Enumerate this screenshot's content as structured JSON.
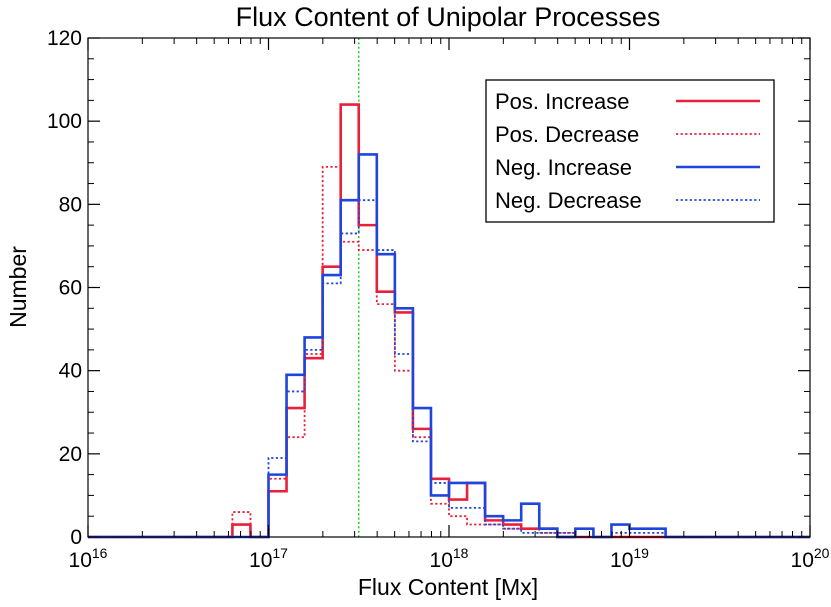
{
  "chart_data": {
    "type": "histogram",
    "title": "Flux Content of Unipolar Processes",
    "xlabel": "Flux Content [Mx]",
    "ylabel": "Number",
    "x_scale": "log",
    "xlim": [
      1e+16,
      1e+20
    ],
    "ylim": [
      0,
      120
    ],
    "x_tick_labels": [
      {
        "base": "10",
        "exp": "16"
      },
      {
        "base": "10",
        "exp": "17"
      },
      {
        "base": "10",
        "exp": "18"
      },
      {
        "base": "10",
        "exp": "19"
      },
      {
        "base": "10",
        "exp": "20"
      }
    ],
    "y_ticks": [
      0,
      20,
      40,
      60,
      80,
      100,
      120
    ],
    "y_tick_labels": [
      "0",
      "20",
      "40",
      "60",
      "80",
      "100",
      "120"
    ],
    "bin_edges_log10": [
      16.0,
      16.8,
      16.9,
      17.0,
      17.1,
      17.2,
      17.3,
      17.4,
      17.5,
      17.6,
      17.7,
      17.8,
      17.9,
      18.0,
      18.1,
      18.2,
      18.3,
      18.4,
      18.5,
      18.6,
      18.7,
      18.8,
      18.9,
      19.0,
      19.1,
      19.2,
      19.3,
      20.0
    ],
    "reference_line": {
      "x_log10": 17.5,
      "color": "#22cc22"
    },
    "legend_position": "top-right",
    "series": [
      {
        "name": "Pos. Increase",
        "color": "#e8203a",
        "dash": "solid",
        "counts": [
          0,
          3,
          0,
          11,
          31,
          43,
          65,
          104,
          75,
          59,
          54,
          26,
          14,
          9,
          13,
          4,
          3,
          2,
          2,
          0,
          0,
          0,
          0,
          0,
          0,
          0,
          0
        ]
      },
      {
        "name": "Pos. Decrease",
        "color": "#e8203a",
        "dash": "dotted",
        "counts": [
          0,
          6,
          0,
          14,
          24,
          44,
          89,
          71,
          69,
          56,
          40,
          24,
          8,
          5,
          3,
          3,
          2,
          2,
          1,
          1,
          0,
          0,
          0,
          0,
          0,
          0,
          0
        ]
      },
      {
        "name": "Neg. Increase",
        "color": "#1f45dd",
        "dash": "solid",
        "counts": [
          0,
          0,
          0,
          15,
          39,
          48,
          63,
          81,
          92,
          68,
          55,
          31,
          10,
          13,
          13,
          5,
          4,
          8,
          2,
          0,
          2,
          0,
          3,
          2,
          2,
          0,
          0
        ]
      },
      {
        "name": "Neg. Decrease",
        "color": "#1f45dd",
        "dash": "dotted",
        "counts": [
          0,
          0,
          0,
          19,
          35,
          45,
          61,
          73,
          81,
          69,
          44,
          23,
          13,
          7,
          7,
          3,
          2,
          1,
          1,
          1,
          0,
          0,
          1,
          1,
          1,
          0,
          0
        ]
      }
    ]
  }
}
